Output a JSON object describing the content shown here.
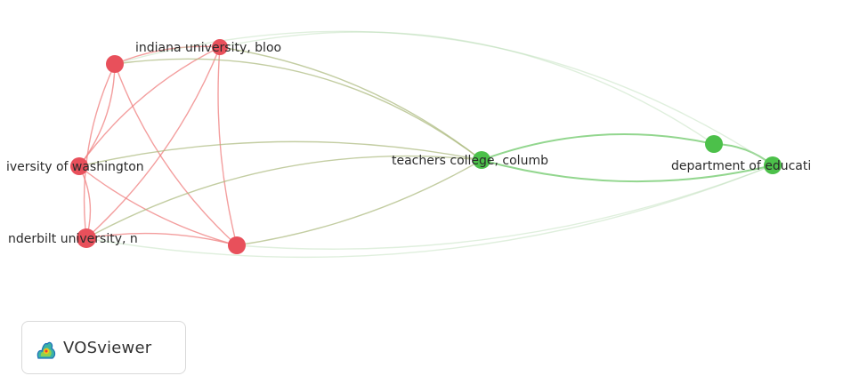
{
  "network": {
    "nodes": [
      {
        "id": "indiana",
        "label": "indiana university, bloo",
        "cluster": "red"
      },
      {
        "id": "red_a",
        "label": "",
        "cluster": "red"
      },
      {
        "id": "washington",
        "label": "iversity of washington",
        "cluster": "red"
      },
      {
        "id": "vanderbilt",
        "label": "nderbilt university, n",
        "cluster": "red"
      },
      {
        "id": "red_b",
        "label": "",
        "cluster": "red"
      },
      {
        "id": "teachers",
        "label": "teachers college, columb",
        "cluster": "green"
      },
      {
        "id": "green_a",
        "label": "",
        "cluster": "green"
      },
      {
        "id": "dept_education",
        "label": "department of educati",
        "cluster": "green"
      }
    ],
    "edges": [
      {
        "from": "red_a",
        "to": "indiana"
      },
      {
        "from": "red_a",
        "to": "washington"
      },
      {
        "from": "red_a",
        "to": "vanderbilt"
      },
      {
        "from": "red_a",
        "to": "red_b"
      },
      {
        "from": "indiana",
        "to": "washington"
      },
      {
        "from": "indiana",
        "to": "vanderbilt"
      },
      {
        "from": "indiana",
        "to": "red_b"
      },
      {
        "from": "washington",
        "to": "vanderbilt"
      },
      {
        "from": "washington",
        "to": "red_b"
      },
      {
        "from": "vanderbilt",
        "to": "red_b"
      },
      {
        "from": "indiana",
        "to": "teachers"
      },
      {
        "from": "red_a",
        "to": "teachers"
      },
      {
        "from": "washington",
        "to": "teachers"
      },
      {
        "from": "vanderbilt",
        "to": "teachers"
      },
      {
        "from": "red_b",
        "to": "teachers"
      },
      {
        "from": "teachers",
        "to": "green_a"
      },
      {
        "from": "teachers",
        "to": "dept_education"
      },
      {
        "from": "green_a",
        "to": "dept_education"
      },
      {
        "from": "indiana",
        "to": "green_a"
      },
      {
        "from": "red_a",
        "to": "dept_education"
      },
      {
        "from": "vanderbilt",
        "to": "dept_education"
      },
      {
        "from": "red_b",
        "to": "dept_education"
      }
    ]
  },
  "colors": {
    "red_cluster": "#e8505b",
    "green_cluster": "#4cc04a",
    "red_edge": "#ef7d7d",
    "green_edge": "#7fcf7a"
  },
  "branding": {
    "name": "VOSviewer",
    "logo_icon": "vosviewer-logo-icon"
  }
}
